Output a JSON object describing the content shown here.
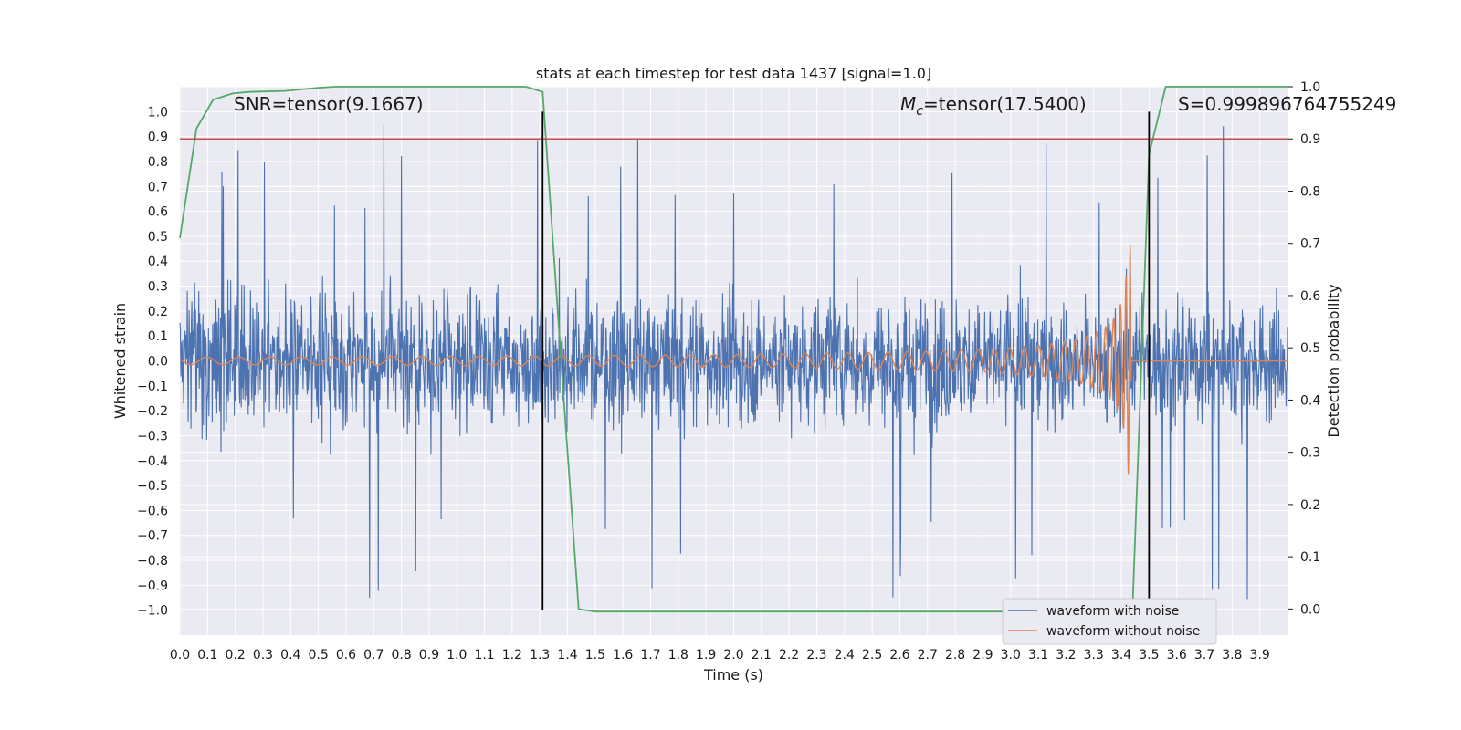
{
  "chart_data": {
    "type": "line",
    "title": "stats at each timestep for test data 1437 [signal=1.0]",
    "xlabel": "Time (s)",
    "ylabel": "Whitened strain",
    "ylabel_right": "Detection probability",
    "xlim": [
      0.0,
      4.0
    ],
    "ylim": [
      -1.1,
      1.1
    ],
    "ylim_right": [
      -0.05,
      1.0
    ],
    "x_ticks": [
      "0.0",
      "0.1",
      "0.2",
      "0.3",
      "0.4",
      "0.5",
      "0.6",
      "0.7",
      "0.8",
      "0.9",
      "1.0",
      "1.1",
      "1.2",
      "1.3",
      "1.4",
      "1.5",
      "1.6",
      "1.7",
      "1.8",
      "1.9",
      "2.0",
      "2.1",
      "2.2",
      "2.3",
      "2.4",
      "2.5",
      "2.6",
      "2.7",
      "2.8",
      "2.9",
      "3.0",
      "3.1",
      "3.2",
      "3.3",
      "3.4",
      "3.5",
      "3.6",
      "3.7",
      "3.8",
      "3.9"
    ],
    "y_ticks": [
      "1.0",
      "0.9",
      "0.8",
      "0.7",
      "0.6",
      "0.5",
      "0.4",
      "0.3",
      "0.2",
      "0.1",
      "0.0",
      "−0.1",
      "−0.2",
      "−0.3",
      "−0.4",
      "−0.5",
      "−0.6",
      "−0.7",
      "−0.8",
      "−0.9",
      "−1.0"
    ],
    "y_right_ticks": [
      "1.0",
      "0.9",
      "0.8",
      "0.7",
      "0.6",
      "0.5",
      "0.4",
      "0.3",
      "0.2",
      "0.1",
      "0.0"
    ],
    "annotations": {
      "snr": "SNR=tensor(9.1667)",
      "mc_symbol": "M",
      "mc_sub": "c",
      "mc_rest": "=tensor(17.5400)",
      "s": "S=0.999896764755249"
    },
    "legend": {
      "position": "lower-right",
      "entries": [
        "waveform with noise",
        "waveform without noise"
      ]
    },
    "series": [
      {
        "name": "waveform with noise",
        "color": "#4c72b0",
        "amplitude_typical": 0.35,
        "peak_max": 0.98,
        "peak_min": -1.0
      },
      {
        "name": "waveform without noise",
        "color": "#dd8452",
        "amplitude_start": 0.015,
        "merger_time": 3.43,
        "peak_amplitude": 0.47
      },
      {
        "name": "detection probability",
        "color": "#55a868",
        "x": [
          0.0,
          0.06,
          0.12,
          0.19,
          0.25,
          0.31,
          0.38,
          0.44,
          0.5,
          0.56,
          0.63,
          0.69,
          0.75,
          0.81,
          0.88,
          0.94,
          1.0,
          1.06,
          1.13,
          1.19,
          1.25,
          1.31,
          1.38,
          1.44,
          1.5,
          1.56,
          1.63,
          2.0,
          2.5,
          3.0,
          3.25,
          3.31,
          3.38,
          3.44,
          3.5,
          3.56,
          3.63,
          3.7,
          3.8,
          3.9,
          4.0
        ],
        "y": [
          0.71,
          0.92,
          0.975,
          0.987,
          0.99,
          0.991,
          0.992,
          0.995,
          0.998,
          1.0,
          1.0,
          1.0,
          1.0,
          1.0,
          1.0,
          1.0,
          1.0,
          1.0,
          1.0,
          1.0,
          1.0,
          0.99,
          0.45,
          0.0,
          -0.005,
          -0.005,
          -0.005,
          -0.005,
          -0.005,
          -0.005,
          -0.005,
          -0.005,
          -0.005,
          -0.005,
          0.87,
          1.0,
          1.0,
          1.0,
          1.0,
          1.0,
          1.0
        ]
      }
    ],
    "threshold": {
      "value": 0.9,
      "axis": "right",
      "color": "#c44e52"
    },
    "vlines": [
      {
        "x": 1.31,
        "color": "#000000"
      },
      {
        "x": 3.5,
        "color": "#000000"
      }
    ]
  }
}
